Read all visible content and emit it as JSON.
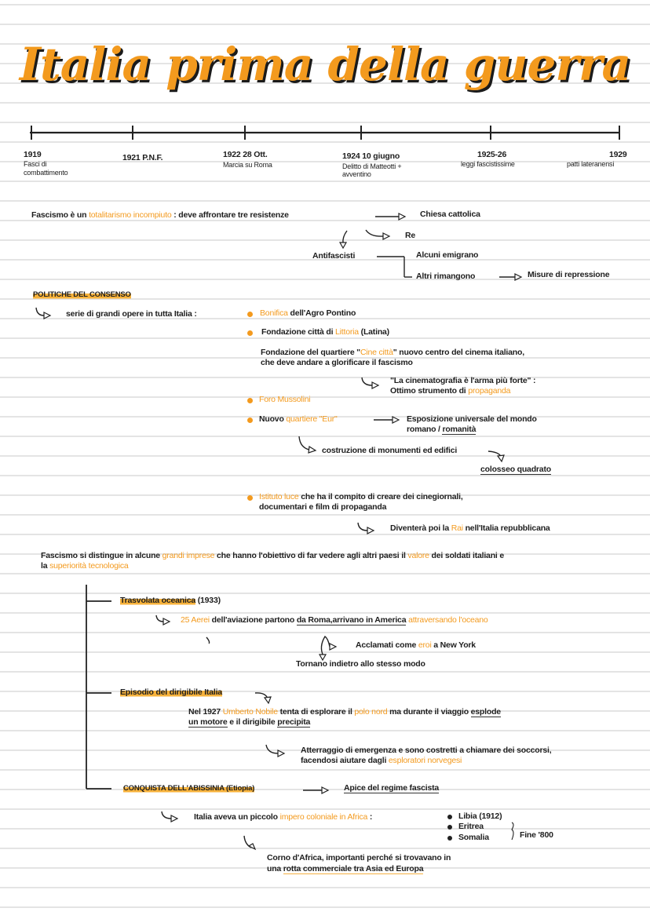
{
  "title": "Italia prima della guerra",
  "colors": {
    "accent": "#f39a1e",
    "highlight": "#f7b23b",
    "text": "#1e1e1e"
  },
  "timeline": [
    {
      "year": "1919",
      "label": "Fasci di",
      "label2": "combattimento"
    },
    {
      "year": "1921 P.N.F.",
      "label": "",
      "label2": ""
    },
    {
      "year": "1922 28 Ott.",
      "label": "Marcia su Roma",
      "label2": ""
    },
    {
      "year": "1924 10 giugno",
      "label": "Delitto di Matteotti +",
      "label2": "avventino"
    },
    {
      "year": "1925-26",
      "label": "leggi fascistissime",
      "label2": ""
    },
    {
      "year": "1929",
      "label": "patti lateranensi",
      "label2": ""
    }
  ],
  "notes": {
    "fascismo": [
      {
        "t": "Fascismo è un "
      },
      {
        "t": "totalitarismo incompiuto",
        "c": "o"
      },
      {
        "t": " : deve affrontare tre resistenze"
      }
    ],
    "chiesa": [
      {
        "t": "Chiesa cattolica"
      }
    ],
    "re": [
      {
        "t": "Re"
      }
    ],
    "antifascisti": [
      {
        "t": "Antifascisti"
      }
    ],
    "emigrano": [
      {
        "t": "Alcuni emigrano"
      }
    ],
    "rimangono": [
      {
        "t": "Altri rimangono"
      }
    ],
    "repressione": [
      {
        "t": "Misure di repressione"
      }
    ],
    "politiche": [
      {
        "t": "POLITICHE DEL CONSENSO",
        "c": "h"
      }
    ],
    "serie": [
      {
        "t": "serie di grandi opere in tutta Italia :"
      }
    ],
    "bonifica": [
      {
        "t": "Bonifica",
        "c": "o"
      },
      {
        "t": " dell'Agro Pontino"
      }
    ],
    "littoria": [
      {
        "t": "Fondazione città di "
      },
      {
        "t": "Littoria",
        "c": "o"
      },
      {
        "t": " (Latina)"
      }
    ],
    "cinecitta1": [
      {
        "t": "Fondazione del quartiere \""
      },
      {
        "t": "Cine città",
        "c": "o"
      },
      {
        "t": "\" nuovo centro del cinema italiano,"
      }
    ],
    "cinecitta2": [
      {
        "t": "che deve andare a glorificare il fascismo"
      }
    ],
    "cinematografia1": [
      {
        "t": "\"La cinematografia è l'arma più forte\" :"
      }
    ],
    "cinematografia2": [
      {
        "t": "Ottimo strumento di "
      },
      {
        "t": "propaganda",
        "c": "o"
      }
    ],
    "foro": [
      {
        "t": "Foro Mussolini",
        "c": "o"
      }
    ],
    "eur": [
      {
        "t": "Nuovo "
      },
      {
        "t": "quartiere \"Eur\"",
        "c": "o"
      }
    ],
    "esposizione1": [
      {
        "t": "Esposizione universale del mondo"
      }
    ],
    "esposizione2": [
      {
        "t": "romano / "
      },
      {
        "t": "romanità",
        "c": "u"
      }
    ],
    "costruzione": [
      {
        "t": "costruzione di monumenti ed edifici"
      }
    ],
    "colosseo": [
      {
        "t": "colosseo quadrato",
        "c": "u"
      }
    ],
    "luce1": [
      {
        "t": "Istituto luce",
        "c": "o"
      },
      {
        "t": " che ha il compito di creare dei cinegiornali,"
      }
    ],
    "luce2": [
      {
        "t": "documentari e film di propaganda"
      }
    ],
    "rai": [
      {
        "t": "Diventerà poi la "
      },
      {
        "t": "Rai",
        "c": "o"
      },
      {
        "t": " nell'Italia repubblicana"
      }
    ],
    "imprese1": [
      {
        "t": "Fascismo si distingue in alcune "
      },
      {
        "t": "grandi imprese",
        "c": "o"
      },
      {
        "t": " che hanno l'obiettivo di far vedere agli altri paesi il "
      },
      {
        "t": "valore",
        "c": "o"
      },
      {
        "t": " dei soldati italiani e"
      }
    ],
    "imprese2": [
      {
        "t": "la "
      },
      {
        "t": "superiorità tecnologica",
        "c": "o"
      }
    ],
    "trasvolata": [
      {
        "t": "Trasvolata oceanica",
        "c": "h"
      },
      {
        "t": " (1933)"
      }
    ],
    "aerei": [
      {
        "t": "25 Aerei",
        "c": "o"
      },
      {
        "t": " dell'aviazione partono "
      },
      {
        "t": "da Roma,arrivano in America",
        "c": "u"
      },
      {
        "t": " "
      },
      {
        "t": "attraversando l'oceano",
        "c": "o"
      }
    ],
    "acclamati": [
      {
        "t": "Acclamati come "
      },
      {
        "t": "eroi",
        "c": "o"
      },
      {
        "t": " a New York"
      }
    ],
    "tornano": [
      {
        "t": "Tornano indietro allo stesso modo"
      }
    ],
    "dirigibile": [
      {
        "t": "Episodio del dirigibile Italia",
        "c": "h"
      }
    ],
    "nobile1": [
      {
        "t": "Nel 1927 "
      },
      {
        "t": "Umberto Nobile",
        "c": "o"
      },
      {
        "t": " tenta di esplorare il "
      },
      {
        "t": "polo nord",
        "c": "o"
      },
      {
        "t": " ma durante il viaggio "
      },
      {
        "t": "esplode",
        "c": "u"
      }
    ],
    "nobile2": [
      {
        "t": "un motore",
        "c": "u"
      },
      {
        "t": " e il dirigibile "
      },
      {
        "t": "precipita",
        "c": "u"
      }
    ],
    "atterraggio1": [
      {
        "t": "Atterraggio di emergenza e sono costretti a chiamare dei soccorsi,"
      }
    ],
    "atterraggio2": [
      {
        "t": "facendosi aiutare dagli "
      },
      {
        "t": "esploratori norvegesi",
        "c": "o"
      }
    ],
    "abissinia": [
      {
        "t": "CONQUISTA DELL'ABISSINIA (Etiopia)",
        "c": "h"
      }
    ],
    "apice": [
      {
        "t": "Apice del regime fascista",
        "c": "u"
      }
    ],
    "impero": [
      {
        "t": "Italia aveva un piccolo "
      },
      {
        "t": "impero coloniale in Africa",
        "c": "o"
      },
      {
        "t": " :"
      }
    ],
    "libia": [
      {
        "t": "Libia (1912)"
      }
    ],
    "eritrea": [
      {
        "t": "Eritrea"
      }
    ],
    "somalia": [
      {
        "t": "Somalia"
      }
    ],
    "fine800": [
      {
        "t": "Fine '800"
      }
    ],
    "corno1": [
      {
        "t": "Corno d'Africa, importanti perché si trovavano in"
      }
    ],
    "corno2": [
      {
        "t": "una "
      },
      {
        "t": "rotta commerciale tra Asia ed Europa",
        "c": "uo"
      }
    ]
  }
}
